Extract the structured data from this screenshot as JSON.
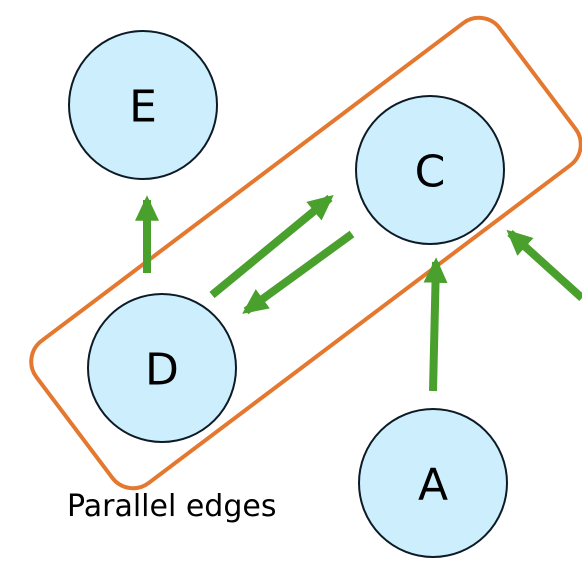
{
  "colors": {
    "node_fill": "#cdeefc",
    "node_stroke": "#0d1b26",
    "edge": "#4aa02c",
    "group_outline": "#e3782e"
  },
  "nodes": [
    {
      "id": "E",
      "label": "E"
    },
    {
      "id": "C",
      "label": "C"
    },
    {
      "id": "D",
      "label": "D"
    },
    {
      "id": "A",
      "label": "A"
    }
  ],
  "edges": [
    {
      "from": "D",
      "to": "E"
    },
    {
      "from": "D",
      "to": "C"
    },
    {
      "from": "C",
      "to": "D"
    },
    {
      "from": "A",
      "to": "C"
    },
    {
      "from": "off-canvas",
      "to": "C"
    }
  ],
  "group": {
    "members": [
      "C",
      "D"
    ],
    "caption": "Parallel edges"
  }
}
